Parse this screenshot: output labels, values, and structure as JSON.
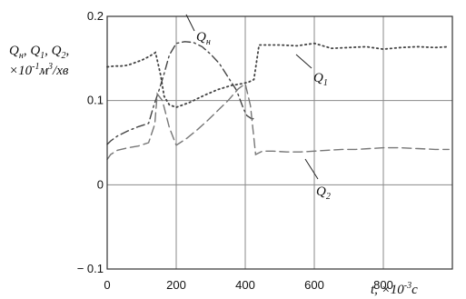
{
  "chart_data": {
    "type": "line",
    "xlim": [
      0,
      1000
    ],
    "ylim": [
      -0.1,
      0.2
    ],
    "grid": true,
    "x_ticks": [
      "0",
      "200",
      "400",
      "600",
      "800"
    ],
    "y_ticks": [
      "0.2",
      "0.1",
      "0",
      "− 0.1"
    ],
    "ylabel": [
      "Qн, Q1, Q2,",
      "×10⁻¹м³/хв"
    ],
    "xlabel": "t, ×10⁻³c",
    "series": [
      {
        "name": "Qн",
        "style": "dash-dot",
        "x": [
          0,
          10,
          30,
          60,
          90,
          120,
          135,
          150,
          165,
          180,
          200,
          225,
          250,
          275,
          300,
          325,
          350,
          375,
          395,
          405,
          420,
          430
        ],
        "y": [
          0.048,
          0.052,
          0.058,
          0.064,
          0.069,
          0.073,
          0.094,
          0.112,
          0.132,
          0.154,
          0.168,
          0.17,
          0.169,
          0.164,
          0.155,
          0.144,
          0.128,
          0.112,
          0.09,
          0.082,
          0.078,
          0.08
        ]
      },
      {
        "name": "Q1",
        "style": "dotted",
        "x": [
          0,
          20,
          40,
          60,
          80,
          100,
          120,
          140,
          155,
          165,
          180,
          200,
          240,
          280,
          320,
          360,
          390,
          410,
          425,
          440,
          460,
          500,
          550,
          600,
          650,
          700,
          750,
          800,
          850,
          900,
          950,
          990
        ],
        "y": [
          0.14,
          0.141,
          0.141,
          0.142,
          0.145,
          0.148,
          0.152,
          0.157,
          0.13,
          0.105,
          0.095,
          0.092,
          0.098,
          0.106,
          0.113,
          0.118,
          0.12,
          0.122,
          0.125,
          0.166,
          0.166,
          0.166,
          0.165,
          0.168,
          0.162,
          0.163,
          0.164,
          0.161,
          0.163,
          0.164,
          0.163,
          0.164
        ]
      },
      {
        "name": "Q2",
        "style": "dashed",
        "x": [
          0,
          10,
          30,
          60,
          90,
          120,
          138,
          145,
          160,
          180,
          200,
          230,
          260,
          290,
          320,
          350,
          380,
          400,
          415,
          430,
          450,
          480,
          520,
          560,
          600,
          640,
          680,
          720,
          760,
          800,
          850,
          900,
          950,
          990
        ],
        "y": [
          0.03,
          0.036,
          0.041,
          0.044,
          0.046,
          0.05,
          0.072,
          0.108,
          0.1,
          0.068,
          0.047,
          0.055,
          0.065,
          0.076,
          0.088,
          0.1,
          0.114,
          0.12,
          0.094,
          0.036,
          0.04,
          0.04,
          0.039,
          0.039,
          0.04,
          0.041,
          0.042,
          0.042,
          0.043,
          0.044,
          0.044,
          0.043,
          0.042,
          0.042
        ]
      }
    ],
    "annotations": [
      {
        "text": "Qн",
        "sub": "н"
      },
      {
        "text": "Q1",
        "sub": "1"
      },
      {
        "text": "Q2",
        "sub": "2"
      }
    ]
  }
}
